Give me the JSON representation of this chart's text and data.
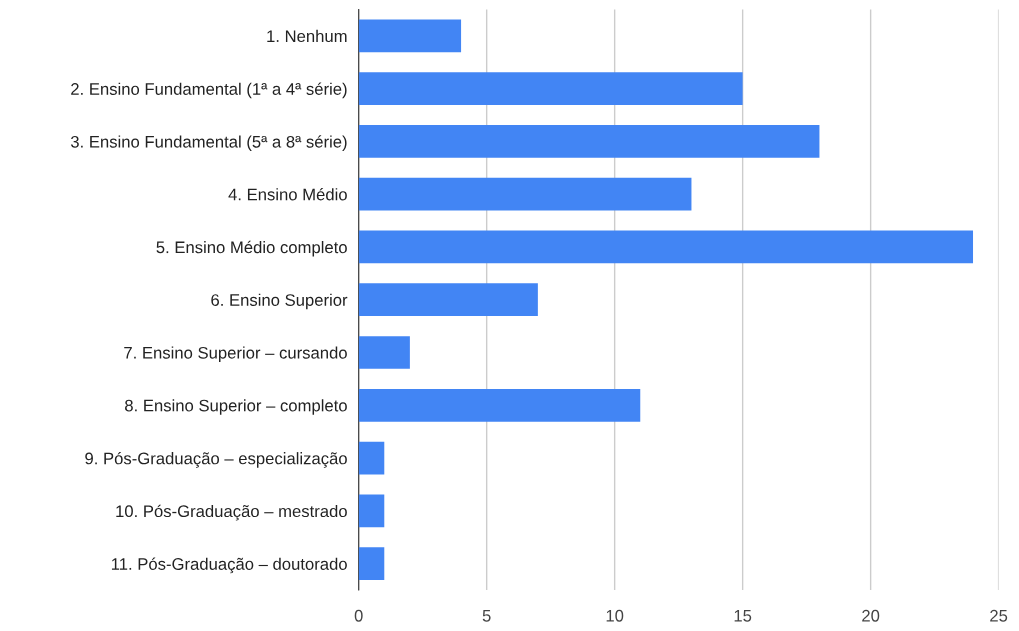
{
  "chart_data": {
    "type": "bar",
    "orientation": "horizontal",
    "categories": [
      "1. Nenhum",
      "2. Ensino Fundamental (1ª a 4ª série)",
      "3. Ensino Fundamental (5ª a 8ª série)",
      "4. Ensino Médio",
      "5. Ensino Médio completo",
      "6. Ensino Superior",
      "7. Ensino Superior – cursando",
      "8. Ensino Superior – completo",
      "9. Pós-Graduação – especialização",
      "10. Pós-Graduação – mestrado",
      "11. Pós-Graduação – doutorado"
    ],
    "values": [
      4,
      15,
      18,
      13,
      24,
      7,
      2,
      11,
      1,
      1,
      1
    ],
    "color": "#4285f4",
    "xlim": [
      0,
      25
    ],
    "xticks": [
      0,
      5,
      10,
      15,
      20,
      25
    ],
    "grid": "x",
    "legend": false
  }
}
